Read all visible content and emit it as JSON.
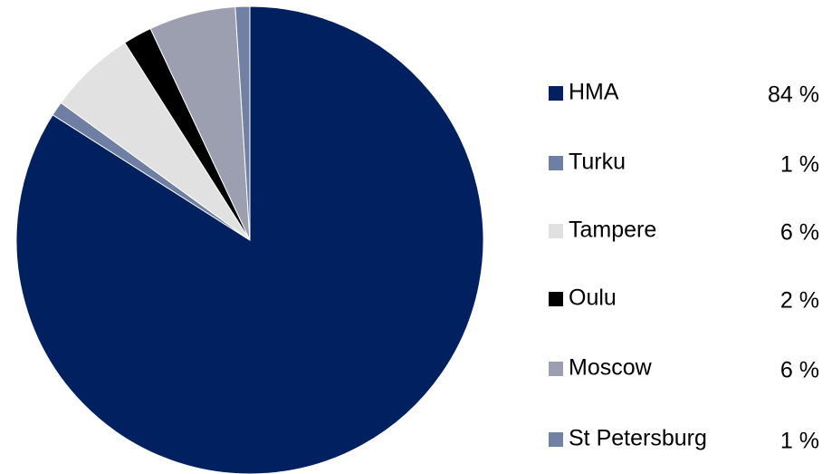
{
  "chart_data": {
    "type": "pie",
    "categories": [
      "HMA",
      "Turku",
      "Tampere",
      "Oulu",
      "Moscow",
      "St Petersburg"
    ],
    "values": [
      84,
      1,
      6,
      2,
      6,
      1
    ],
    "value_labels": [
      "84 %",
      "1 %",
      "6 %",
      "2 %",
      "6 %",
      "1 %"
    ],
    "colors": [
      "#002060",
      "#6f7fa3",
      "#e1e1e1",
      "#000000",
      "#9c9fb0",
      "#7181a4"
    ]
  }
}
